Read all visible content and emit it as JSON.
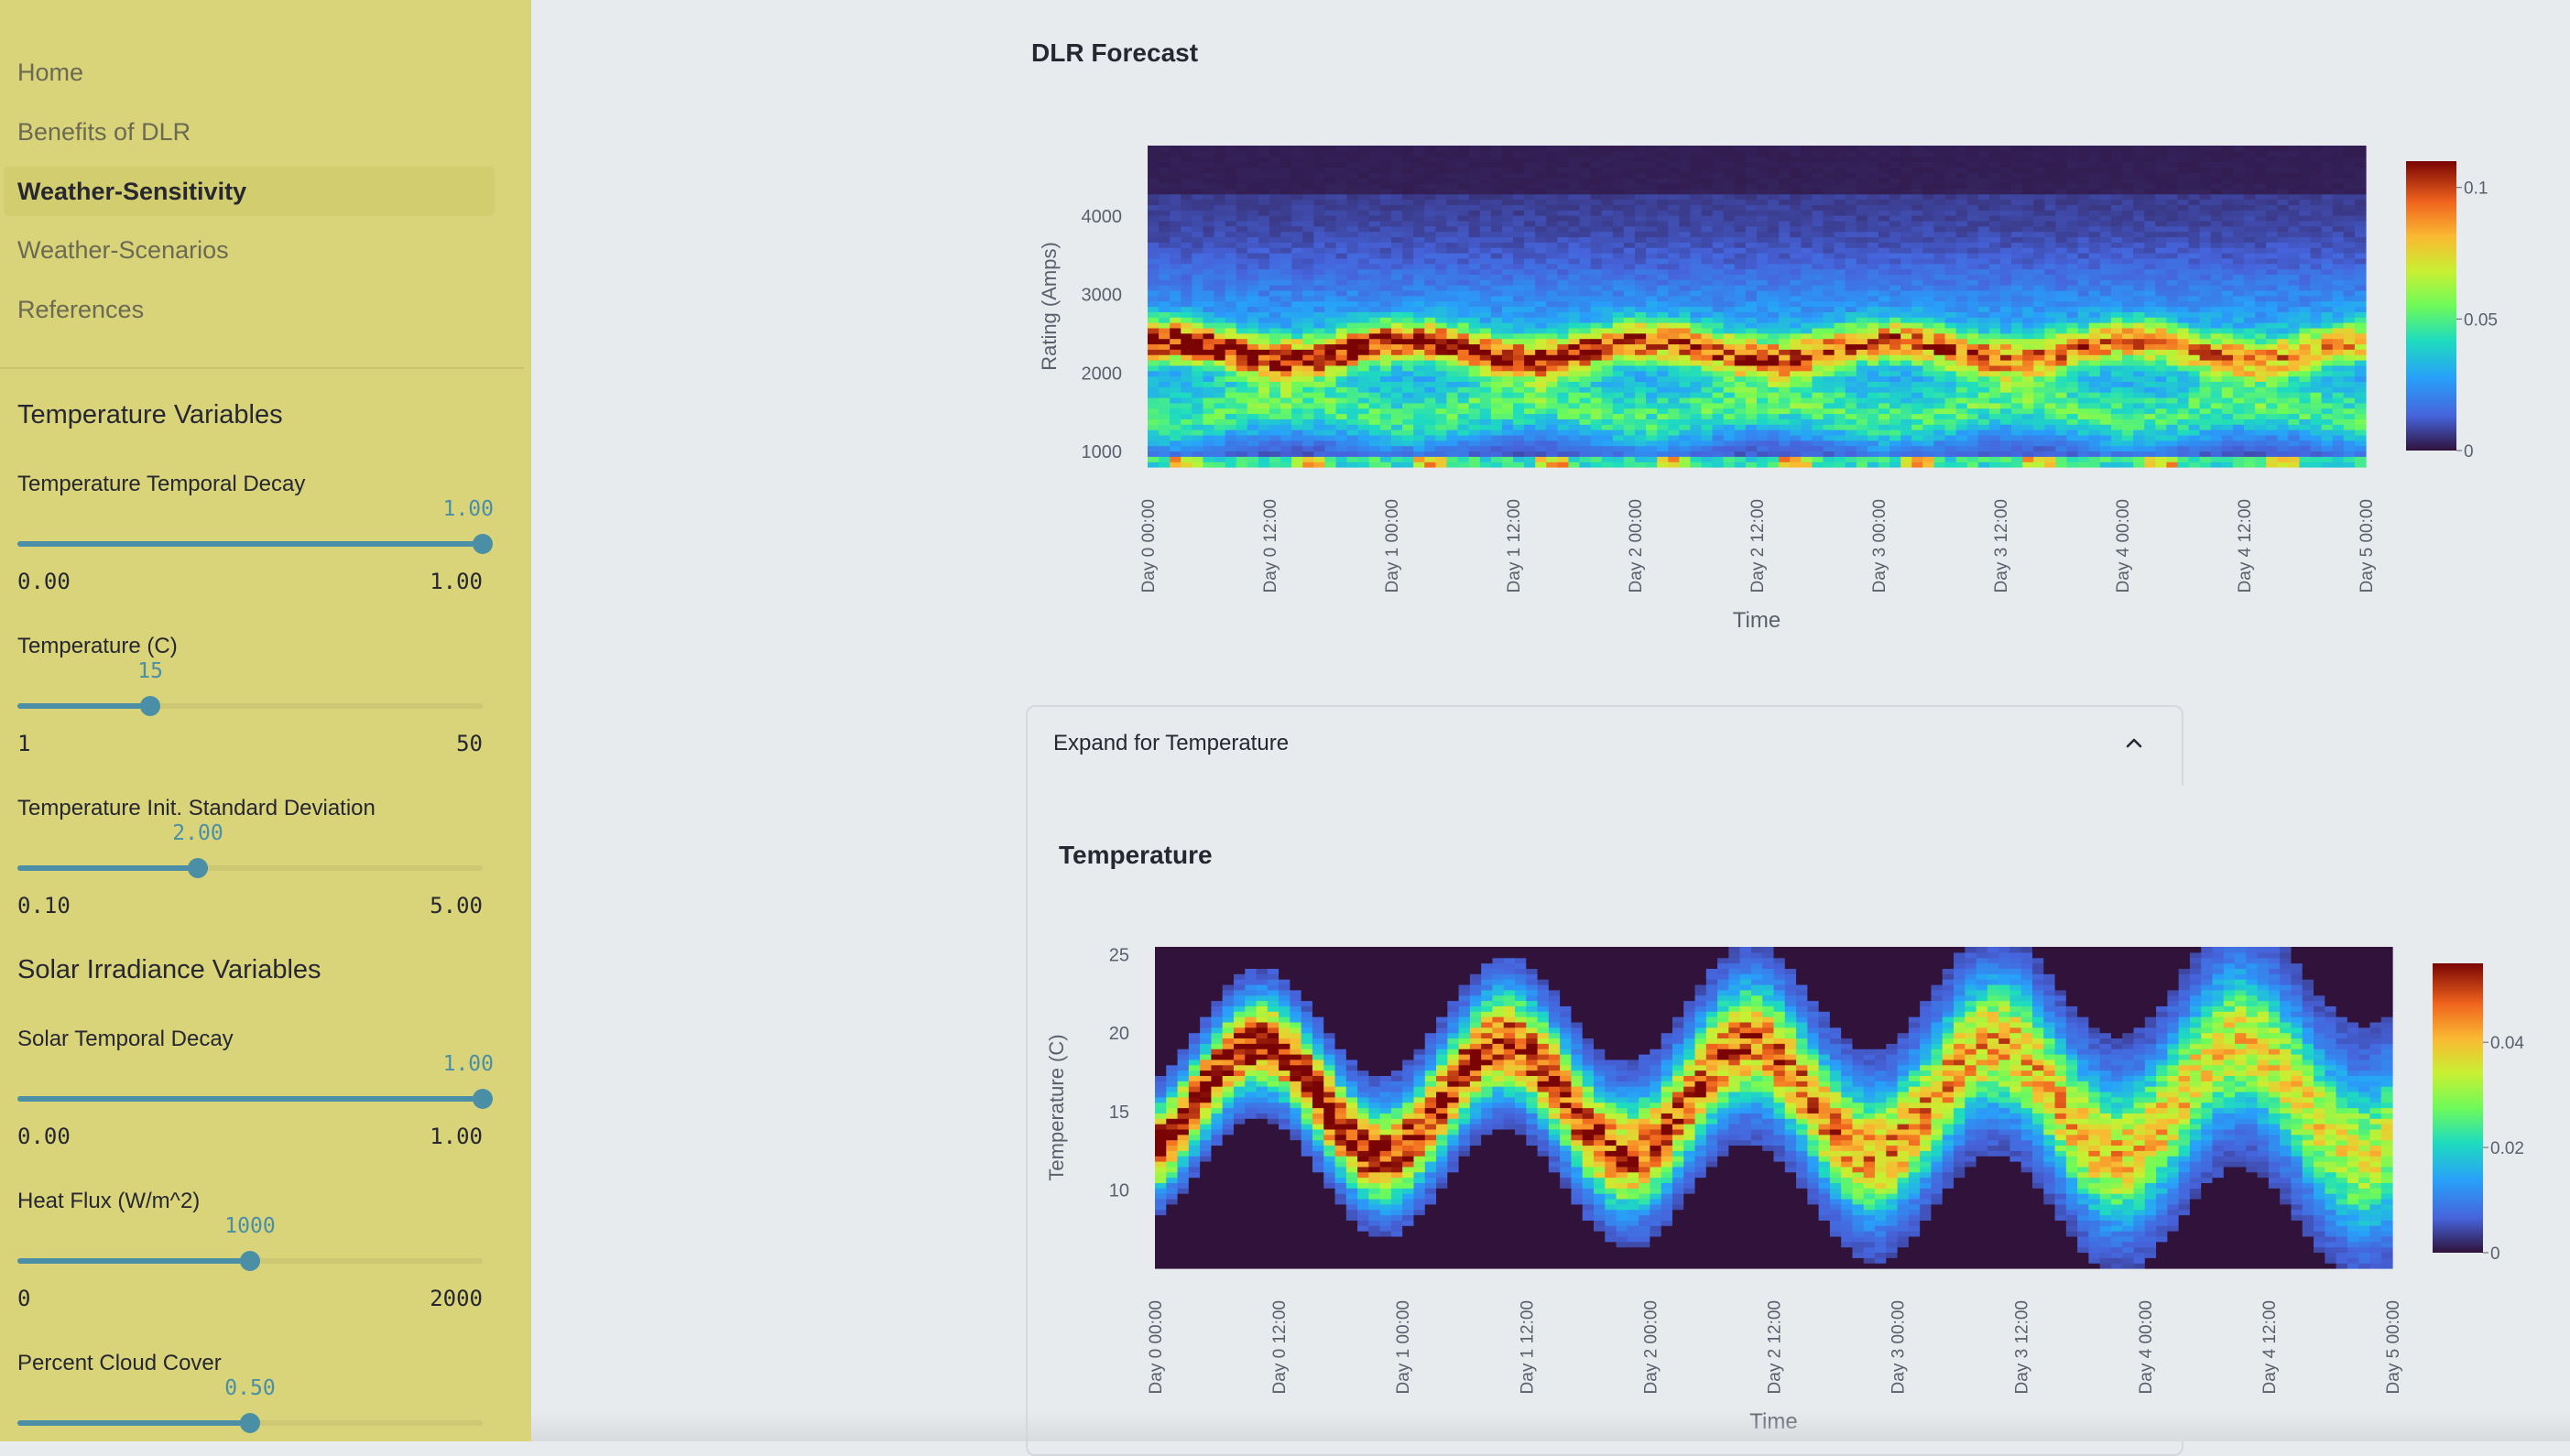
{
  "sidebar": {
    "nav": [
      "Home",
      "Benefits of DLR",
      "Weather-Sensitivity",
      "Weather-Scenarios",
      "References"
    ],
    "active_index": 2,
    "temperature_section": {
      "title": "Temperature Variables",
      "sliders": [
        {
          "label": "Temperature Temporal Decay",
          "value": "1.00",
          "min": "0.00",
          "max": "1.00",
          "fraction": 1.0
        },
        {
          "label": "Temperature (C)",
          "value": "15",
          "min": "1",
          "max": "50",
          "fraction": 0.2857
        },
        {
          "label": "Temperature Init. Standard Deviation",
          "value": "2.00",
          "min": "0.10",
          "max": "5.00",
          "fraction": 0.3878
        }
      ]
    },
    "solar_section": {
      "title": "Solar Irradiance Variables",
      "sliders": [
        {
          "label": "Solar Temporal Decay",
          "value": "1.00",
          "min": "0.00",
          "max": "1.00",
          "fraction": 1.0
        },
        {
          "label": "Heat Flux (W/m^2)",
          "value": "1000",
          "min": "0",
          "max": "2000",
          "fraction": 0.5
        },
        {
          "label": "Percent Cloud Cover",
          "value": "0.50",
          "min": "",
          "max": "",
          "fraction": 0.5
        }
      ]
    }
  },
  "main": {
    "dlr_title": "DLR Forecast",
    "expander_label": "Expand for Temperature",
    "temperature_title": "Temperature"
  },
  "chart_data": [
    {
      "type": "heatmap",
      "title": "DLR Forecast",
      "xlabel": "Time",
      "ylabel": "Rating (Amps)",
      "x_ticks": [
        "Day 0 00:00",
        "Day 0 12:00",
        "Day 1 00:00",
        "Day 1 12:00",
        "Day 2 00:00",
        "Day 2 12:00",
        "Day 3 00:00",
        "Day 3 12:00",
        "Day 4 00:00",
        "Day 4 12:00",
        "Day 5 00:00"
      ],
      "y_ticks": [
        1000,
        2000,
        3000,
        4000
      ],
      "ylim": [
        800,
        4900
      ],
      "colorbar_ticks": [
        "0",
        "0.05",
        "0.1"
      ],
      "colorbar_range": [
        0,
        0.11
      ],
      "colorscale": "turbo"
    },
    {
      "type": "heatmap",
      "title": "Temperature",
      "xlabel": "Time",
      "ylabel": "Temperature (C)",
      "x_ticks": [
        "Day 0 00:00",
        "Day 0 12:00",
        "Day 1 00:00",
        "Day 1 12:00",
        "Day 2 00:00",
        "Day 2 12:00",
        "Day 3 00:00",
        "Day 3 12:00",
        "Day 4 00:00",
        "Day 4 12:00",
        "Day 5 00:00"
      ],
      "y_ticks": [
        10,
        15,
        20,
        25
      ],
      "ylim": [
        5,
        25.5
      ],
      "colorbar_ticks": [
        "0",
        "0.02",
        "0.04"
      ],
      "colorbar_range": [
        0,
        0.055
      ],
      "colorscale": "turbo"
    }
  ]
}
